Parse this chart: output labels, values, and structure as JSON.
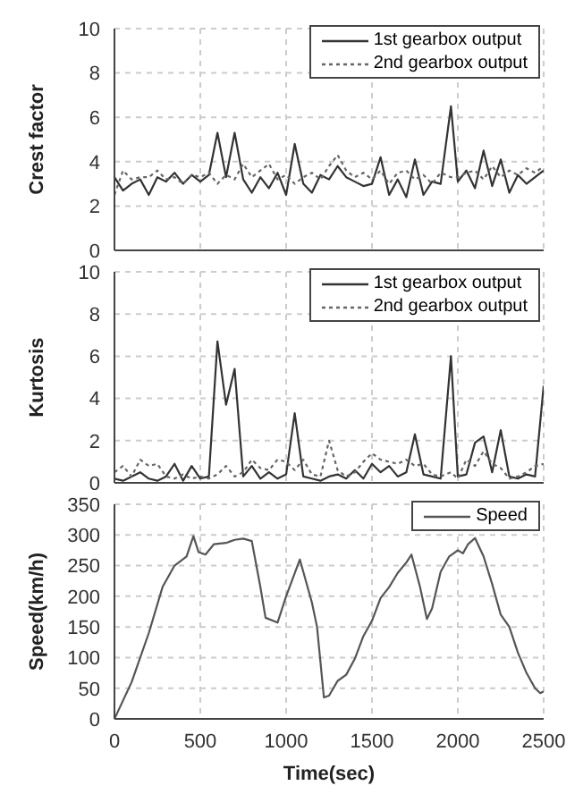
{
  "chart_data": [
    {
      "type": "line",
      "ylabel": "Crest  factor",
      "xlim": [
        0,
        2500
      ],
      "xticks": [
        0,
        500,
        1000,
        1500,
        2000,
        2500
      ],
      "ylim": [
        0,
        10
      ],
      "yticks": [
        0,
        2,
        4,
        6,
        8,
        10
      ],
      "grid": true,
      "legend": "top right",
      "tick_labels": "y",
      "x": [
        0,
        50,
        100,
        150,
        200,
        250,
        300,
        350,
        400,
        450,
        500,
        550,
        600,
        650,
        700,
        750,
        800,
        850,
        900,
        950,
        1000,
        1050,
        1100,
        1150,
        1200,
        1250,
        1300,
        1350,
        1400,
        1450,
        1500,
        1550,
        1600,
        1650,
        1700,
        1750,
        1800,
        1850,
        1900,
        1960,
        2000,
        2050,
        2100,
        2150,
        2200,
        2250,
        2300,
        2350,
        2400,
        2450,
        2500
      ],
      "series": [
        {
          "name": "1st gearbox output",
          "color": "#333333",
          "line_style": "solid",
          "values": [
            3.3,
            2.7,
            3.0,
            3.2,
            2.5,
            3.3,
            3.1,
            3.5,
            3.0,
            3.4,
            3.1,
            3.4,
            5.3,
            3.3,
            5.3,
            3.2,
            2.6,
            3.3,
            2.8,
            3.5,
            2.5,
            4.8,
            3.0,
            2.6,
            3.4,
            3.2,
            3.8,
            3.3,
            3.1,
            2.9,
            3.0,
            4.2,
            2.5,
            3.2,
            2.4,
            4.1,
            2.5,
            3.1,
            3.0,
            6.5,
            3.1,
            3.6,
            2.8,
            4.5,
            2.9,
            4.1,
            2.6,
            3.4,
            3.0,
            3.3,
            3.6
          ]
        },
        {
          "name": "2nd gearbox output",
          "color": "#666666",
          "line_style": "dotted",
          "values": [
            2.5,
            3.6,
            3.2,
            3.3,
            3.3,
            3.6,
            3.2,
            3.3,
            3.0,
            3.4,
            3.3,
            3.5,
            3.0,
            3.4,
            3.2,
            3.9,
            3.3,
            3.6,
            3.9,
            3.2,
            3.4,
            3.0,
            3.3,
            3.5,
            3.2,
            3.8,
            4.3,
            3.6,
            3.3,
            3.5,
            3.2,
            3.6,
            3.0,
            3.5,
            3.6,
            3.2,
            3.4,
            3.0,
            3.5,
            3.3,
            3.3,
            3.5,
            3.6,
            3.2,
            3.8,
            3.3,
            3.6,
            3.4,
            3.7,
            3.5,
            3.8
          ]
        }
      ]
    },
    {
      "type": "line",
      "ylabel": "Kurtosis",
      "xlim": [
        0,
        2500
      ],
      "xticks": [
        0,
        500,
        1000,
        1500,
        2000,
        2500
      ],
      "ylim": [
        0,
        10
      ],
      "yticks": [
        0,
        2,
        4,
        6,
        8,
        10
      ],
      "grid": true,
      "legend": "top right",
      "tick_labels": "y",
      "x": [
        0,
        50,
        100,
        150,
        200,
        250,
        300,
        350,
        400,
        450,
        500,
        550,
        600,
        650,
        700,
        750,
        800,
        850,
        900,
        950,
        1000,
        1050,
        1100,
        1150,
        1200,
        1250,
        1300,
        1350,
        1400,
        1450,
        1500,
        1550,
        1600,
        1650,
        1700,
        1750,
        1800,
        1850,
        1900,
        1960,
        2000,
        2050,
        2100,
        2150,
        2200,
        2250,
        2300,
        2350,
        2400,
        2450,
        2500
      ],
      "series": [
        {
          "name": "1st gearbox output",
          "color": "#333333",
          "line_style": "solid",
          "values": [
            0.2,
            0.1,
            0.3,
            0.5,
            0.2,
            0.1,
            0.3,
            0.9,
            0.1,
            0.8,
            0.2,
            0.3,
            6.7,
            3.7,
            5.4,
            0.3,
            0.8,
            0.2,
            0.5,
            0.2,
            0.4,
            3.3,
            0.3,
            0.2,
            0.1,
            0.3,
            0.4,
            0.2,
            0.6,
            0.2,
            0.9,
            0.5,
            0.8,
            0.3,
            0.5,
            2.3,
            0.4,
            0.3,
            0.2,
            6.0,
            0.3,
            0.4,
            1.9,
            2.2,
            0.5,
            2.5,
            0.3,
            0.2,
            0.4,
            0.3,
            4.6
          ]
        },
        {
          "name": "2nd gearbox output",
          "color": "#666666",
          "line_style": "dotted",
          "values": [
            0.5,
            0.8,
            0.3,
            1.1,
            0.8,
            0.9,
            0.3,
            0.2,
            0.4,
            0.2,
            0.3,
            0.2,
            0.4,
            0.8,
            0.3,
            0.5,
            1.1,
            0.7,
            0.6,
            1.1,
            1.0,
            0.6,
            1.1,
            0.4,
            0.3,
            2.0,
            0.6,
            0.3,
            0.5,
            1.0,
            1.4,
            1.1,
            1.0,
            0.9,
            1.1,
            0.8,
            0.9,
            0.4,
            0.3,
            0.5,
            0.2,
            1.1,
            0.8,
            1.5,
            0.9,
            0.7,
            0.2,
            0.3,
            0.5,
            0.8,
            0.9
          ]
        }
      ]
    },
    {
      "type": "line",
      "xlabel": "Time(sec)",
      "ylabel": "Speed(km/h)",
      "xlim": [
        0,
        2500
      ],
      "xticks": [
        0,
        500,
        1000,
        1500,
        2000,
        2500
      ],
      "ylim": [
        0,
        350
      ],
      "yticks": [
        0,
        50,
        100,
        150,
        200,
        250,
        300,
        350
      ],
      "grid": true,
      "legend": "top right",
      "x": [
        0,
        100,
        200,
        280,
        350,
        420,
        460,
        490,
        530,
        580,
        650,
        700,
        750,
        800,
        850,
        880,
        950,
        1000,
        1080,
        1150,
        1180,
        1220,
        1250,
        1300,
        1350,
        1400,
        1450,
        1500,
        1550,
        1600,
        1650,
        1700,
        1730,
        1780,
        1820,
        1850,
        1900,
        1950,
        2000,
        2030,
        2060,
        2100,
        2150,
        2200,
        2250,
        2300,
        2350,
        2400,
        2450,
        2480,
        2500
      ],
      "series": [
        {
          "name": "Speed",
          "color": "#555555",
          "line_style": "solid",
          "values": [
            0,
            60,
            140,
            215,
            250,
            265,
            298,
            272,
            268,
            285,
            287,
            292,
            294,
            290,
            215,
            165,
            157,
            200,
            260,
            190,
            150,
            35,
            38,
            62,
            72,
            98,
            135,
            160,
            197,
            215,
            238,
            255,
            268,
            215,
            163,
            180,
            240,
            265,
            275,
            270,
            285,
            295,
            265,
            220,
            170,
            150,
            108,
            75,
            50,
            42,
            45
          ]
        }
      ]
    }
  ]
}
